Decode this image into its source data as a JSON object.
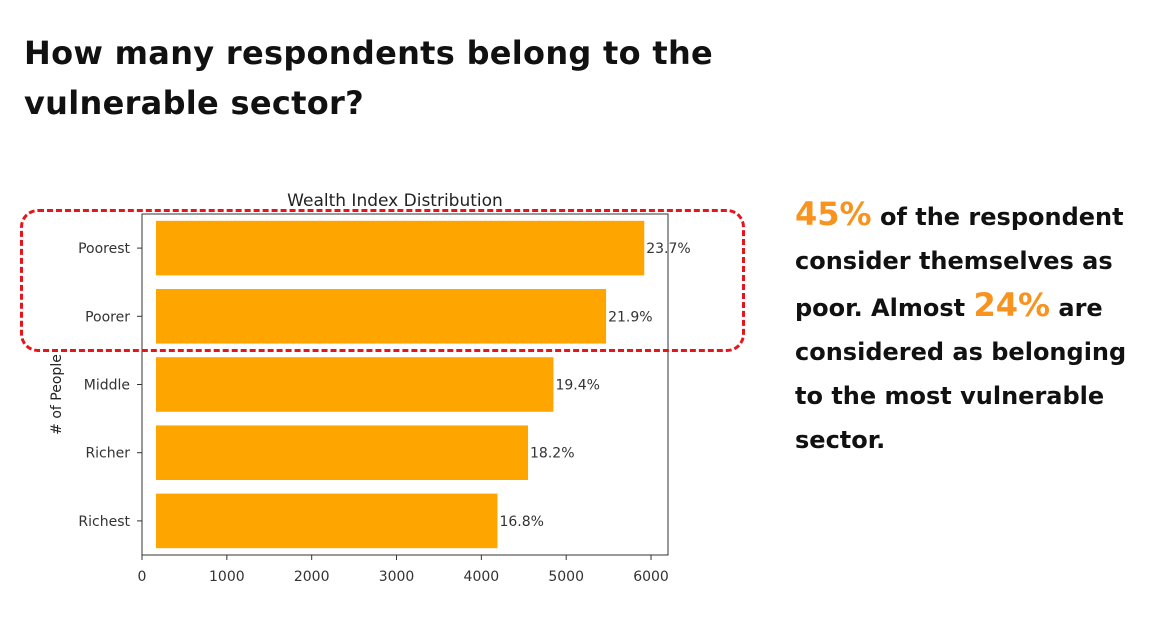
{
  "title": "How many respondents belong to the vulnerable sector?",
  "summary": {
    "figure_1": "45%",
    "text_1": " of the respondent consider themselves as poor. Almost ",
    "figure_2": "24%",
    "text_2": " are considered as belonging to the most vulnerable sector."
  },
  "colors": {
    "bar": "#ffa500",
    "highlight": "#f7931e",
    "dashed_box": "#e8141b"
  },
  "chart_data": {
    "type": "bar",
    "orientation": "horizontal",
    "title": "Wealth Index Distribution",
    "xlabel": "",
    "ylabel": "# of People",
    "categories": [
      "Poorest",
      "Poorer",
      "Middle",
      "Richer",
      "Richest"
    ],
    "values": [
      5920,
      5470,
      4850,
      4550,
      4190
    ],
    "labels": [
      "23.7%",
      "21.9%",
      "19.4%",
      "18.2%",
      "16.8%"
    ],
    "xlim": [
      0,
      6200
    ],
    "xticks": [
      0,
      1000,
      2000,
      3000,
      4000,
      5000,
      6000
    ],
    "grid": false,
    "legend": "none"
  }
}
